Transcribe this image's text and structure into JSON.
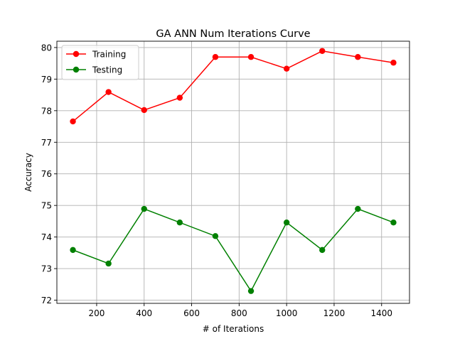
{
  "chart_data": {
    "type": "line",
    "title": "GA ANN Num Iterations Curve",
    "xlabel": "# of Iterations",
    "ylabel": "Accuracy",
    "x": [
      100,
      250,
      400,
      550,
      700,
      850,
      1000,
      1150,
      1300,
      1450
    ],
    "series": [
      {
        "name": "Training",
        "color": "#ff0000",
        "values": [
          77.66,
          78.59,
          78.02,
          78.41,
          79.7,
          79.7,
          79.33,
          79.89,
          79.7,
          79.52
        ]
      },
      {
        "name": "Testing",
        "color": "#008000",
        "values": [
          73.59,
          73.16,
          74.89,
          74.46,
          74.03,
          72.29,
          74.46,
          73.59,
          74.89,
          74.46
        ]
      }
    ],
    "xlim": [
      32.5,
      1517.5
    ],
    "ylim": [
      71.9,
      80.2
    ],
    "xticks": [
      200,
      400,
      600,
      800,
      1000,
      1200,
      1400
    ],
    "yticks": [
      72,
      73,
      74,
      75,
      76,
      77,
      78,
      79,
      80
    ],
    "grid": true,
    "legend": "top-left",
    "marker": "circle"
  }
}
